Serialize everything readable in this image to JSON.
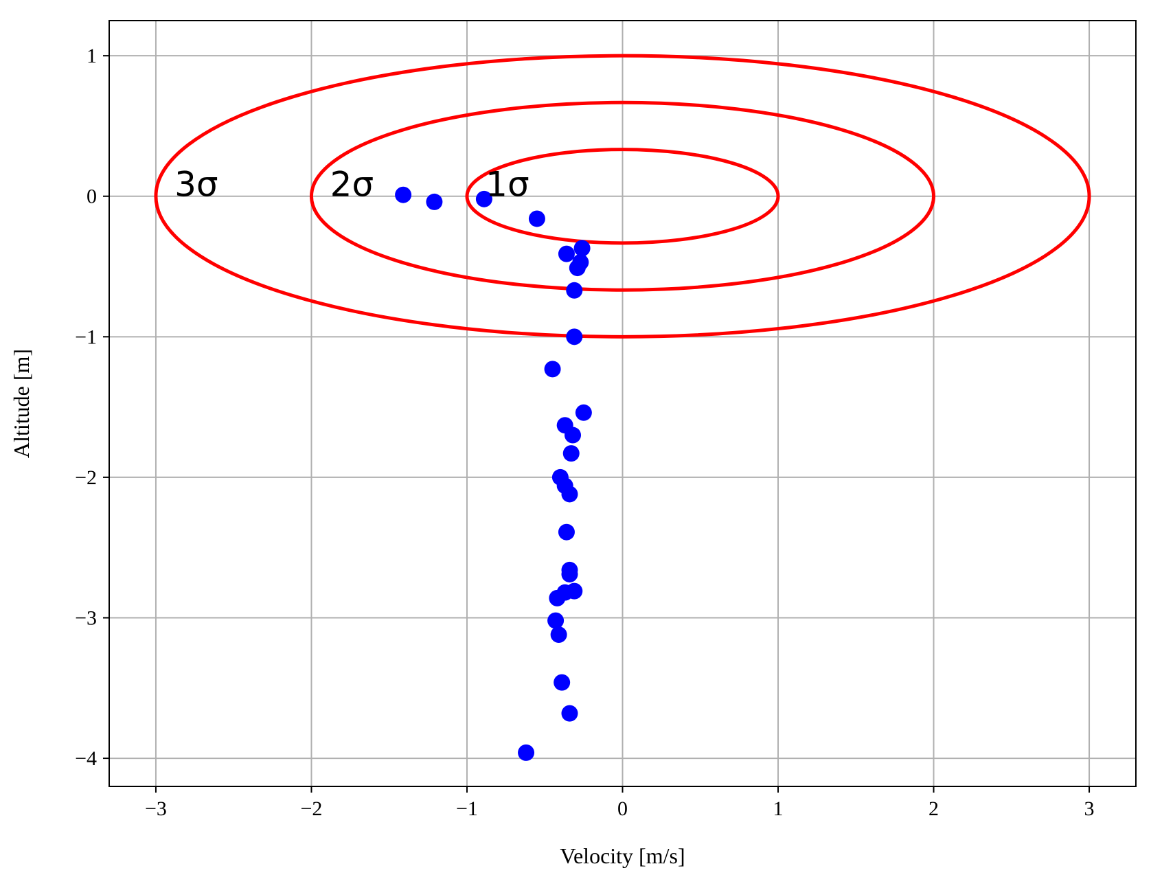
{
  "chart_data": {
    "type": "scatter",
    "xlabel": "Velocity [m/s]",
    "ylabel": "Altitude [m]",
    "xlim": [
      -3.3,
      3.3
    ],
    "ylim": [
      -4.2,
      1.25
    ],
    "grid": true,
    "x_ticks": [
      -3,
      -2,
      -1,
      0,
      1,
      2,
      3
    ],
    "y_ticks": [
      1,
      0,
      -1,
      -2,
      -3,
      -4
    ],
    "x_tick_labels": [
      "−3",
      "−2",
      "−1",
      "0",
      "1",
      "2",
      "3"
    ],
    "y_tick_labels": [
      "1",
      "0",
      "−1",
      "−2",
      "−3",
      "−4"
    ],
    "ellipses": [
      {
        "label": "1σ",
        "cx": 0,
        "cy": 0,
        "rx": 1,
        "ry": 0.333,
        "label_x": -0.88,
        "label_y": 0.09
      },
      {
        "label": "2σ",
        "cx": 0,
        "cy": 0,
        "rx": 2,
        "ry": 0.667,
        "label_x": -1.88,
        "label_y": 0.09
      },
      {
        "label": "3σ",
        "cx": 0,
        "cy": 0,
        "rx": 3,
        "ry": 1.0,
        "label_x": -2.88,
        "label_y": 0.09
      }
    ],
    "series": [
      {
        "points": [
          {
            "x": -1.41,
            "y": 0.01
          },
          {
            "x": -1.21,
            "y": -0.04
          },
          {
            "x": -0.89,
            "y": -0.02
          },
          {
            "x": -0.55,
            "y": -0.16
          },
          {
            "x": -0.26,
            "y": -0.37
          },
          {
            "x": -0.36,
            "y": -0.41
          },
          {
            "x": -0.27,
            "y": -0.47
          },
          {
            "x": -0.29,
            "y": -0.51
          },
          {
            "x": -0.31,
            "y": -0.67
          },
          {
            "x": -0.31,
            "y": -1.0
          },
          {
            "x": -0.45,
            "y": -1.23
          },
          {
            "x": -0.25,
            "y": -1.54
          },
          {
            "x": -0.37,
            "y": -1.63
          },
          {
            "x": -0.32,
            "y": -1.7
          },
          {
            "x": -0.33,
            "y": -1.83
          },
          {
            "x": -0.4,
            "y": -2.0
          },
          {
            "x": -0.37,
            "y": -2.06
          },
          {
            "x": -0.34,
            "y": -2.12
          },
          {
            "x": -0.36,
            "y": -2.39
          },
          {
            "x": -0.34,
            "y": -2.66
          },
          {
            "x": -0.34,
            "y": -2.69
          },
          {
            "x": -0.31,
            "y": -2.81
          },
          {
            "x": -0.37,
            "y": -2.82
          },
          {
            "x": -0.42,
            "y": -2.86
          },
          {
            "x": -0.43,
            "y": -3.02
          },
          {
            "x": -0.41,
            "y": -3.12
          },
          {
            "x": -0.39,
            "y": -3.46
          },
          {
            "x": -0.34,
            "y": -3.68
          },
          {
            "x": -0.62,
            "y": -3.96
          }
        ]
      }
    ]
  },
  "colors": {
    "points": "#0000ff",
    "ellipses": "#ff0000",
    "grid": "#b0b0b0",
    "axes": "#000000"
  }
}
